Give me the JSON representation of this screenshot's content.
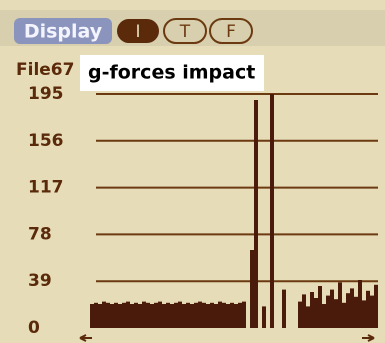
{
  "tabs": [
    "Display",
    "I",
    "T",
    "F"
  ],
  "file_label": "File67",
  "chart_data": {
    "type": "bar",
    "title": "g-forces impact",
    "color": "#4a1a0a",
    "grid": true,
    "ylim": [
      0,
      195
    ],
    "yticks": [
      0,
      39,
      78,
      117,
      156,
      195
    ],
    "values": [
      20,
      21,
      20,
      22,
      21,
      20,
      21,
      20,
      21,
      22,
      20,
      21,
      20,
      22,
      21,
      20,
      21,
      22,
      20,
      21,
      20,
      21,
      22,
      20,
      21,
      20,
      21,
      22,
      21,
      20,
      21,
      20,
      22,
      21,
      20,
      21,
      20,
      21,
      22,
      0,
      65,
      190,
      0,
      18,
      0,
      195,
      0,
      0,
      32,
      0,
      0,
      0,
      22,
      28,
      18,
      30,
      25,
      35,
      20,
      27,
      32,
      24,
      38,
      21,
      29,
      33,
      26,
      40,
      23,
      31,
      27,
      36
    ]
  }
}
